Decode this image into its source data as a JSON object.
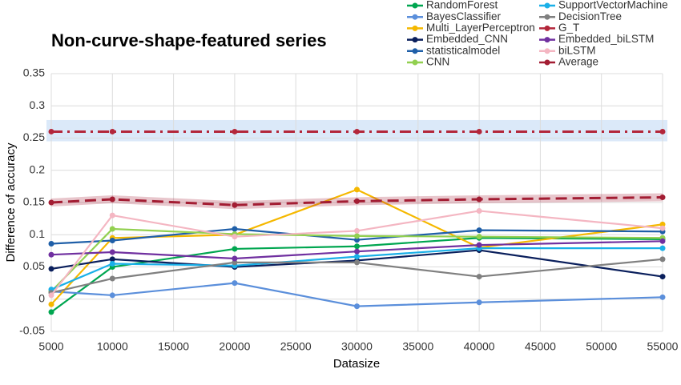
{
  "chart_data": {
    "type": "line",
    "title": "Non-curve-shape-featured series",
    "xlabel": "Datasize",
    "ylabel": "Difference of accuracy",
    "x": [
      5000,
      10000,
      20000,
      30000,
      40000,
      55000
    ],
    "xlim": [
      5000,
      55000
    ],
    "xticks": [
      5000,
      10000,
      15000,
      20000,
      25000,
      30000,
      35000,
      40000,
      45000,
      50000,
      55000
    ],
    "ylim": [
      -0.05,
      0.35
    ],
    "yticks": [
      -0.05,
      0,
      0.05,
      0.1,
      0.15,
      0.2,
      0.25,
      0.3,
      0.35
    ],
    "grid": true,
    "legend": "top-right",
    "highlight_band": {
      "color": "#dbe9f9",
      "range": [
        0.245,
        0.278
      ]
    },
    "series": [
      {
        "name": "RandomForest",
        "color": "#00a650",
        "values": [
          -0.02,
          0.05,
          0.078,
          0.082,
          0.095,
          0.093
        ]
      },
      {
        "name": "BayesClassifier",
        "color": "#5b8fdb",
        "values": [
          0.012,
          0.006,
          0.025,
          -0.011,
          -0.005,
          0.003
        ]
      },
      {
        "name": "Multi_LayerPerceptron",
        "color": "#f5b800",
        "values": [
          -0.008,
          0.095,
          0.1,
          0.17,
          0.08,
          0.116
        ]
      },
      {
        "name": "Embedded_CNN",
        "color": "#0a1f5c",
        "values": [
          0.047,
          0.062,
          0.05,
          0.06,
          0.076,
          0.035
        ]
      },
      {
        "name": "statisticalmodel",
        "color": "#1f5fa8",
        "values": [
          0.086,
          0.091,
          0.109,
          0.092,
          0.107,
          0.105
        ]
      },
      {
        "name": "CNN",
        "color": "#92d050",
        "values": [
          0.012,
          0.109,
          0.101,
          0.098,
          0.097,
          0.095
        ]
      },
      {
        "name": "SupportVectorMachine",
        "color": "#1ab0e8",
        "values": [
          0.015,
          0.055,
          0.052,
          0.066,
          0.079,
          0.079
        ]
      },
      {
        "name": "DecisionTree",
        "color": "#808080",
        "values": [
          0.01,
          0.032,
          0.057,
          0.057,
          0.035,
          0.062
        ]
      },
      {
        "name": "G_T",
        "color": "#b3263a",
        "style": "dashdot",
        "values": [
          0.26,
          0.26,
          0.26,
          0.26,
          0.26,
          0.26
        ]
      },
      {
        "name": "Embedded_biLSTM",
        "color": "#7030a0",
        "values": [
          0.069,
          0.073,
          0.063,
          0.074,
          0.084,
          0.09
        ]
      },
      {
        "name": "biLSTM",
        "color": "#f4b6c2",
        "values": [
          0.006,
          0.13,
          0.097,
          0.106,
          0.137,
          0.11
        ]
      },
      {
        "name": "Average",
        "color": "#a31d33",
        "style": "dashed",
        "glow": true,
        "values": [
          0.15,
          0.155,
          0.146,
          0.152,
          0.155,
          0.158
        ]
      }
    ]
  }
}
